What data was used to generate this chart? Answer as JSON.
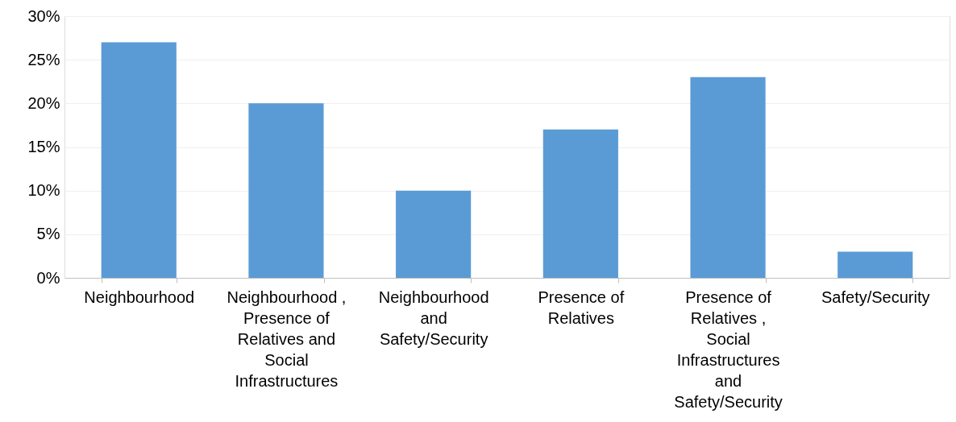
{
  "chart_data": {
    "type": "bar",
    "categories": [
      "Neighbourhood",
      "Neighbourhood , Presence of Relatives and Social Infrastructures",
      "Neighbourhood and Safety/Security",
      "Presence of Relatives",
      "Presence of Relatives , Social Infrastructures and Safety/Security",
      "Safety/Security"
    ],
    "values": [
      27,
      20,
      10,
      17,
      23,
      3
    ],
    "color": "#5b9bd5",
    "ylim": [
      0,
      30
    ],
    "yticks": [
      {
        "value": 0,
        "label": "0%"
      },
      {
        "value": 5,
        "label": "5%"
      },
      {
        "value": 10,
        "label": "10%"
      },
      {
        "value": 15,
        "label": "15%"
      },
      {
        "value": 20,
        "label": "20%"
      },
      {
        "value": 25,
        "label": "25%"
      },
      {
        "value": 30,
        "label": "30%"
      }
    ],
    "grid": "y"
  }
}
